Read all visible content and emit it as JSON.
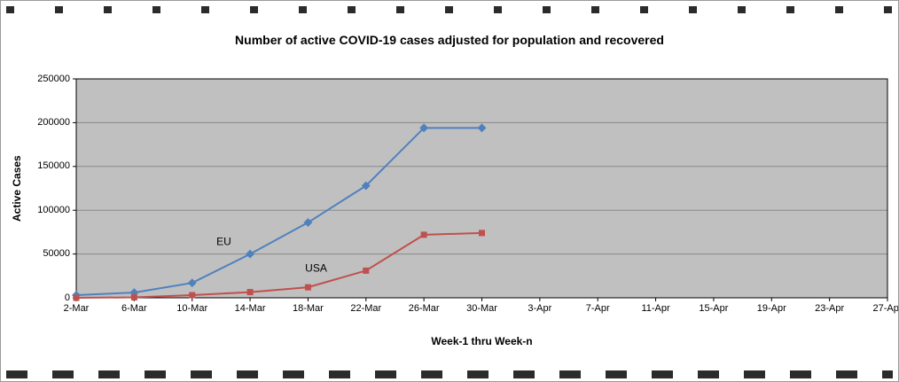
{
  "chart_data": {
    "type": "line",
    "title": "Number of active COVID-19 cases adjusted for population and recovered",
    "xlabel": "Week-1 thru Week-n",
    "ylabel": "Active Cases",
    "ylim": [
      0,
      250000
    ],
    "yticks": [
      0,
      50000,
      100000,
      150000,
      200000,
      250000
    ],
    "categories": [
      "2-Mar",
      "6-Mar",
      "10-Mar",
      "14-Mar",
      "18-Mar",
      "22-Mar",
      "26-Mar",
      "30-Mar",
      "3-Apr",
      "7-Apr",
      "11-Apr",
      "15-Apr",
      "19-Apr",
      "23-Apr",
      "27-Apr"
    ],
    "grid": true,
    "legend_position": "none",
    "plot_bg": "#c0c0c0",
    "grid_color": "#888888",
    "axis_color": "#000000",
    "series": [
      {
        "name": "EU",
        "color": "#4f81bd",
        "marker": "diamond",
        "values": [
          3000,
          6000,
          17000,
          50000,
          86000,
          128000,
          194000,
          194000
        ]
      },
      {
        "name": "USA",
        "color": "#c0504d",
        "marker": "square",
        "values": [
          0,
          500,
          3000,
          6500,
          12000,
          31000,
          72000,
          74000
        ]
      }
    ],
    "annotations": [
      {
        "text": "EU",
        "xi": 2.42,
        "y": 60000
      },
      {
        "text": "USA",
        "xi": 3.95,
        "y": 30000
      }
    ]
  }
}
